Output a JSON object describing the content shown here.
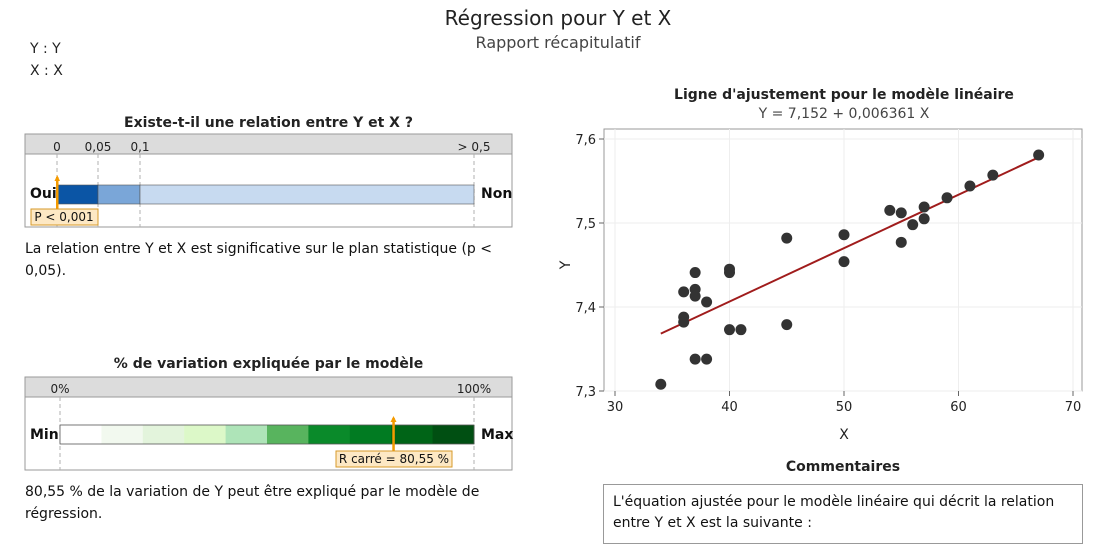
{
  "header": {
    "title": "Régression pour Y et X",
    "subtitle": "Rapport récapitulatif",
    "y_var": "Y : Y",
    "x_var": "X : X"
  },
  "relation_panel": {
    "title": "Existe-t-il une relation entre Y et X ?",
    "scale_labels": [
      "0",
      "0,05",
      "0,1",
      "> 0,5"
    ],
    "left_label": "Oui",
    "right_label": "Non",
    "p_label": "P < 0,001",
    "p_value": 0.001,
    "conclusion": "La relation entre Y et X est significative sur le plan statistique (p < 0,05)."
  },
  "variation_panel": {
    "title": "% de variation expliquée par le modèle",
    "scale_labels": [
      "0%",
      "100%"
    ],
    "left_label": "Min",
    "right_label": "Max",
    "r2_label": "R carré = 80,55 %",
    "r2_value": 80.55,
    "conclusion": "80,55 % de la variation de Y peut être expliqué par le modèle de régression."
  },
  "chart_data": {
    "type": "scatter",
    "title": "Ligne d'ajustement pour le modèle linéaire",
    "subtitle": "Y = 7,152 + 0,006361 X",
    "xlabel": "X",
    "ylabel": "Y",
    "xlim": [
      30,
      70
    ],
    "ylim": [
      7.3,
      7.6
    ],
    "x_ticks": [
      30,
      40,
      50,
      60,
      70
    ],
    "y_ticks": [
      7.3,
      7.4,
      7.5,
      7.6
    ],
    "x_tick_labels": [
      "30",
      "40",
      "50",
      "60",
      "70"
    ],
    "y_tick_labels": [
      "7,3",
      "7,4",
      "7,5",
      "7,6"
    ],
    "grid": true,
    "points": [
      [
        34,
        7.308
      ],
      [
        36,
        7.418
      ],
      [
        36,
        7.388
      ],
      [
        36,
        7.382
      ],
      [
        37,
        7.441
      ],
      [
        37,
        7.421
      ],
      [
        37,
        7.413
      ],
      [
        37,
        7.338
      ],
      [
        38,
        7.406
      ],
      [
        38,
        7.338
      ],
      [
        40,
        7.445
      ],
      [
        40,
        7.441
      ],
      [
        40,
        7.373
      ],
      [
        41,
        7.373
      ],
      [
        45,
        7.482
      ],
      [
        45,
        7.379
      ],
      [
        50,
        7.486
      ],
      [
        50,
        7.454
      ],
      [
        54,
        7.515
      ],
      [
        55,
        7.512
      ],
      [
        55,
        7.477
      ],
      [
        56,
        7.498
      ],
      [
        57,
        7.519
      ],
      [
        57,
        7.505
      ],
      [
        59,
        7.53
      ],
      [
        61,
        7.544
      ],
      [
        63,
        7.557
      ],
      [
        67,
        7.581
      ]
    ],
    "fit_line": {
      "intercept": 7.152,
      "slope": 0.006361,
      "x_range": [
        34,
        67
      ]
    },
    "colors": {
      "points": "#333333",
      "line": "#a01c1c"
    }
  },
  "comments": {
    "title": "Commentaires",
    "text": "L'équation ajustée pour le modèle linéaire qui décrit la relation entre Y et X est la suivante :"
  },
  "colors": {
    "p_segments": [
      "#0b55a5",
      "#7aa6d8",
      "#c7daf0"
    ],
    "r2_segments": [
      "#ffffff",
      "#f2f9ef",
      "#e3f4dc",
      "#dcf8c8",
      "#aee4b8",
      "#58b45e",
      "#0a8a2a",
      "#017b22",
      "#006417",
      "#004f12"
    ],
    "marker": "#f59b00",
    "label_bg": "#fde8c4"
  }
}
